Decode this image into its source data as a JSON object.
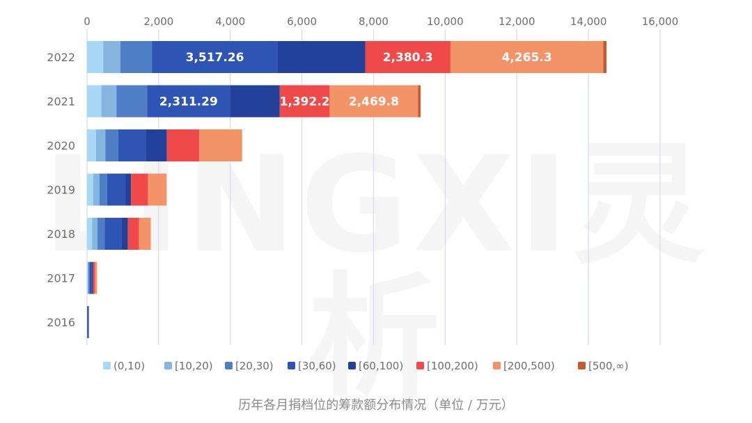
{
  "caption": "历年各月捐档位的筹款额分布情况（单位 / 万元）",
  "watermark": "LINGXI灵析",
  "chart_data": {
    "type": "bar",
    "orientation": "horizontal",
    "stacked": true,
    "categories": [
      "2022",
      "2021",
      "2020",
      "2019",
      "2018",
      "2017",
      "2016"
    ],
    "x_ticks": [
      "0",
      "2,000",
      "4,000",
      "6,000",
      "8,000",
      "10,000",
      "12,000",
      "14,000",
      "16,000"
    ],
    "xlim": [
      0,
      16000
    ],
    "grid": "vertical",
    "legend_position": "bottom",
    "series": [
      {
        "name": "(0,10)",
        "color": "#a9d8f5",
        "values": [
          450,
          400,
          250,
          170,
          140,
          20,
          0
        ]
      },
      {
        "name": "[10,20)",
        "color": "#86b6e0",
        "values": [
          480,
          420,
          260,
          180,
          150,
          20,
          0
        ]
      },
      {
        "name": "[20,30)",
        "color": "#4f7ec6",
        "values": [
          880,
          860,
          360,
          210,
          200,
          30,
          10
        ]
      },
      {
        "name": "[30,60)",
        "color": "#2e55b4",
        "values": [
          3517.26,
          2311.29,
          770,
          510,
          470,
          60,
          20
        ]
      },
      {
        "name": "[60,100)",
        "color": "#23409a",
        "values": [
          2440,
          1390,
          590,
          160,
          180,
          40,
          20
        ]
      },
      {
        "name": "[100,200)",
        "color": "#ef4a49",
        "values": [
          2380.3,
          1392.2,
          900,
          470,
          310,
          50,
          0
        ]
      },
      {
        "name": "[200,500)",
        "color": "#f39368",
        "values": [
          4265.3,
          2469.8,
          1200,
          520,
          330,
          60,
          0
        ]
      },
      {
        "name": "[500,∞)",
        "color": "#c65a2b",
        "values": [
          90,
          70,
          0,
          0,
          0,
          0,
          0
        ]
      }
    ],
    "data_labels": [
      {
        "category": "2022",
        "series": "[30,60)",
        "text": "3,517.26"
      },
      {
        "category": "2022",
        "series": "[100,200)",
        "text": "2,380.3"
      },
      {
        "category": "2022",
        "series": "[200,500)",
        "text": "4,265.3"
      },
      {
        "category": "2021",
        "series": "[30,60)",
        "text": "2,311.29"
      },
      {
        "category": "2021",
        "series": "[100,200)",
        "text": "1,392.2"
      },
      {
        "category": "2021",
        "series": "[200,500)",
        "text": "2,469.8"
      }
    ]
  }
}
